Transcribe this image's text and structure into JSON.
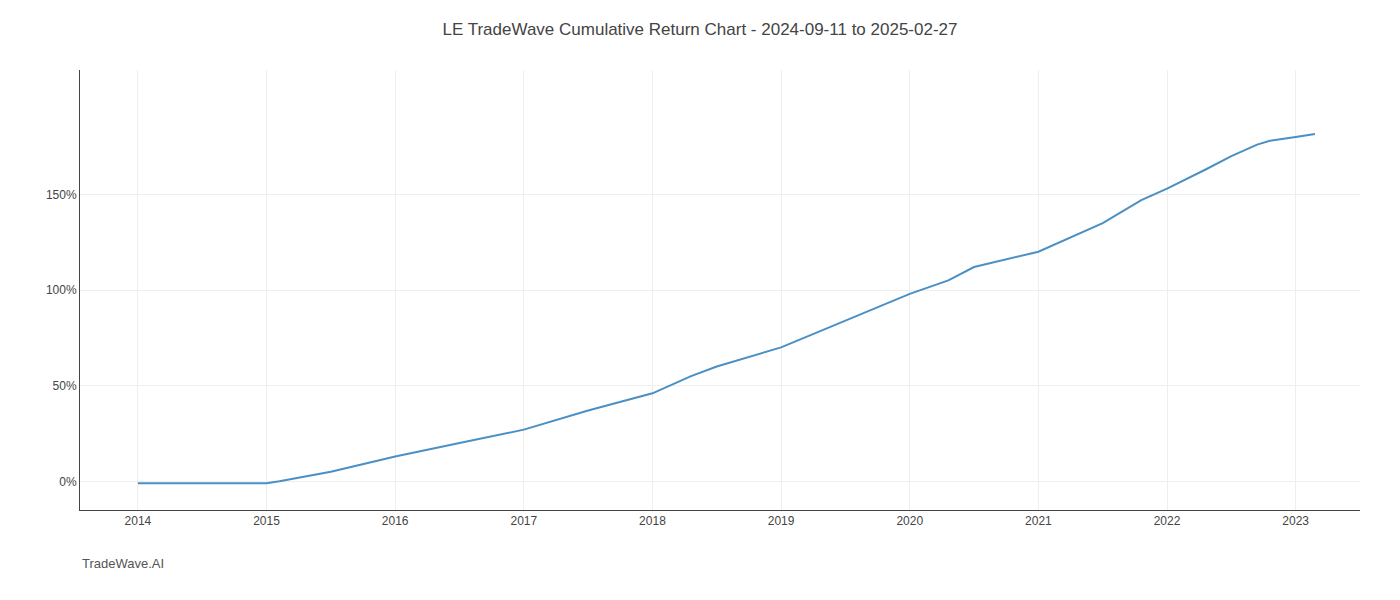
{
  "chart_data": {
    "type": "line",
    "title": "LE TradeWave Cumulative Return Chart - 2024-09-11 to 2025-02-27",
    "annotations": [
      "TradeWave.AI"
    ],
    "x": [
      2014.0,
      2014.7,
      2015.0,
      2015.05,
      2015.1,
      2015.5,
      2016.0,
      2016.5,
      2017.0,
      2017.5,
      2018.0,
      2018.3,
      2018.5,
      2019.0,
      2019.5,
      2020.0,
      2020.3,
      2020.5,
      2021.0,
      2021.5,
      2021.8,
      2022.0,
      2022.3,
      2022.5,
      2022.7,
      2022.8,
      2023.0,
      2023.15
    ],
    "values": [
      -1.0,
      -1.0,
      -1.0,
      -0.5,
      0.0,
      5.0,
      13.0,
      20.0,
      27.0,
      37.0,
      46.0,
      55.0,
      60.0,
      70.0,
      84.0,
      98.0,
      105.0,
      112.0,
      120.0,
      135.0,
      147.0,
      153.0,
      163.0,
      170.0,
      176.0,
      178.0,
      180.0,
      181.5
    ],
    "color": "#4a90c4",
    "xlim": [
      2013.55,
      2023.5
    ],
    "xticks": [
      2014,
      2015,
      2016,
      2017,
      2018,
      2019,
      2020,
      2021,
      2022,
      2023
    ],
    "ylim": [
      -15,
      215
    ],
    "yticks": [
      {
        "value": 0,
        "label": "0%"
      },
      {
        "value": 50,
        "label": "50%"
      },
      {
        "value": 100,
        "label": "100%"
      },
      {
        "value": 150,
        "label": "150%"
      }
    ],
    "grid": true
  }
}
